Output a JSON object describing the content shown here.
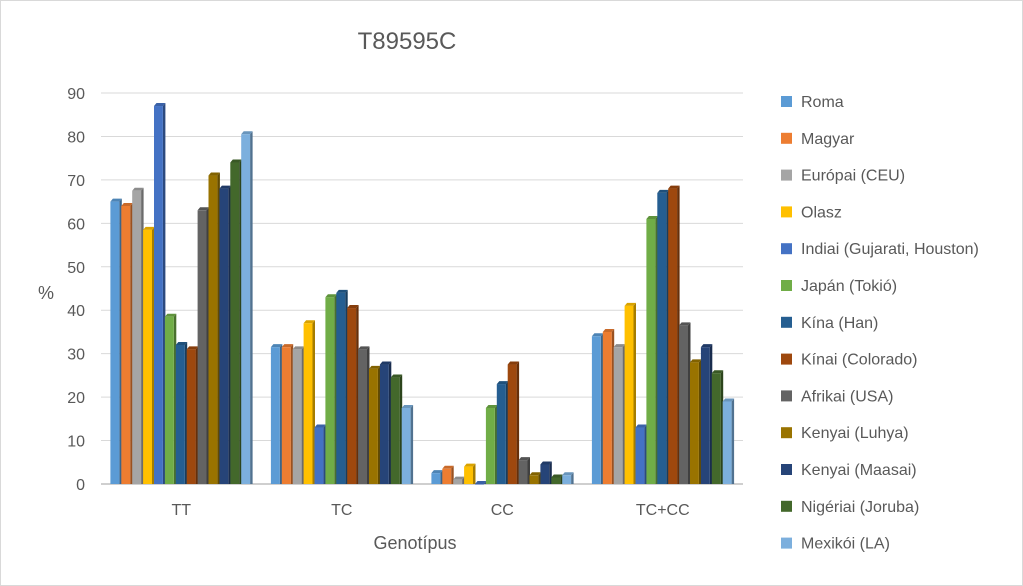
{
  "chart_data": {
    "type": "bar",
    "title": "T89595C",
    "xlabel": "Genotípus",
    "ylabel": "%",
    "ylim": [
      0,
      90
    ],
    "yticks": [
      0,
      10,
      20,
      30,
      40,
      50,
      60,
      70,
      80,
      90
    ],
    "grid": true,
    "legend_position": "right",
    "categories": [
      "TT",
      "TC",
      "CC",
      "TC+CC"
    ],
    "series": [
      {
        "name": "Roma",
        "color": "#5b9bd5",
        "values": [
          65,
          31.5,
          2.5,
          34
        ]
      },
      {
        "name": "Magyar",
        "color": "#ed7d31",
        "values": [
          64,
          31.5,
          3.5,
          35
        ]
      },
      {
        "name": "Európai (CEU)",
        "color": "#a5a5a5",
        "values": [
          67.5,
          31,
          1,
          31.5
        ]
      },
      {
        "name": "Olasz",
        "color": "#ffc000",
        "values": [
          58.5,
          37,
          4,
          41
        ]
      },
      {
        "name": "Indiai (Gujarati, Houston)",
        "color": "#4472c4",
        "values": [
          87,
          13,
          0,
          13
        ]
      },
      {
        "name": "Japán (Tokió)",
        "color": "#70ad47",
        "values": [
          38.5,
          43,
          17.5,
          61
        ]
      },
      {
        "name": "Kína (Han)",
        "color": "#255e91",
        "values": [
          32,
          44,
          23,
          67
        ]
      },
      {
        "name": "Kínai (Colorado)",
        "color": "#9e480e",
        "values": [
          31,
          40.5,
          27.5,
          68
        ]
      },
      {
        "name": "Afrikai (USA)",
        "color": "#636363",
        "values": [
          63,
          31,
          5.5,
          36.5
        ]
      },
      {
        "name": "Kenyai (Luhya)",
        "color": "#997300",
        "values": [
          71,
          26.5,
          2,
          28
        ]
      },
      {
        "name": "Kenyai (Maasai)",
        "color": "#264478",
        "values": [
          68,
          27.5,
          4.5,
          31.5
        ]
      },
      {
        "name": "Nigériai (Joruba)",
        "color": "#43682b",
        "values": [
          74,
          24.5,
          1.5,
          25.5
        ]
      },
      {
        "name": "Mexikói (LA)",
        "color": "#7cafdd",
        "values": [
          80.5,
          17.5,
          2,
          19
        ]
      }
    ]
  }
}
